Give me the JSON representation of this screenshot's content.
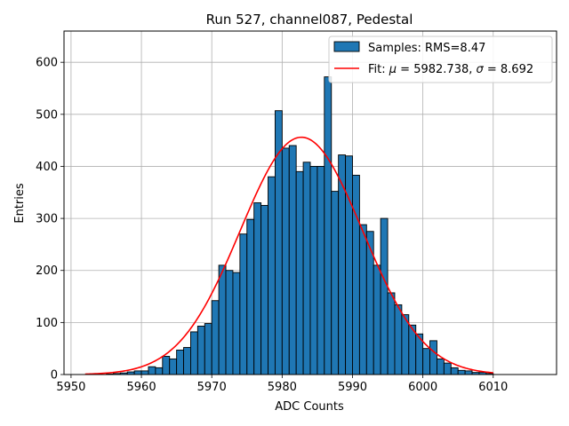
{
  "chart_data": {
    "type": "bar",
    "title": "Run 527, channel087, Pedestal",
    "xlabel": "ADC Counts",
    "ylabel": "Entries",
    "xlim": [
      5949,
      6019
    ],
    "ylim": [
      0,
      660
    ],
    "xticks": [
      "5950",
      "5960",
      "5970",
      "5980",
      "5990",
      "6000",
      "6010"
    ],
    "yticks": [
      "0",
      "100",
      "200",
      "300",
      "400",
      "500",
      "600"
    ],
    "grid": true,
    "legend_position": "top-right",
    "bar_color": "#1f77b4",
    "fit_color": "#ff0000",
    "histogram": {
      "name": "Samples: RMS=8.47",
      "bin_start": 5952,
      "bin_width": 1,
      "counts": [
        0,
        0,
        0,
        1,
        2,
        3,
        5,
        7,
        7,
        15,
        13,
        35,
        30,
        47,
        52,
        82,
        93,
        98,
        142,
        210,
        200,
        196,
        270,
        298,
        330,
        325,
        380,
        507,
        435,
        440,
        390,
        408,
        400,
        400,
        572,
        352,
        422,
        420,
        383,
        288,
        275,
        210,
        300,
        157,
        134,
        115,
        95,
        78,
        50,
        65,
        30,
        22,
        13,
        8,
        7,
        4,
        4,
        2
      ]
    },
    "fit": {
      "name": "Fit: μ = 5982.738, σ = 8.692",
      "name_prefix": "Fit: ",
      "name_mu": "μ",
      "name_mid": " = 5982.738, ",
      "name_sigma": "σ",
      "name_suffix": " = 8.692",
      "mu": 5982.738,
      "sigma": 8.692,
      "amplitude": 456,
      "x_range": [
        5952,
        6010
      ]
    }
  }
}
